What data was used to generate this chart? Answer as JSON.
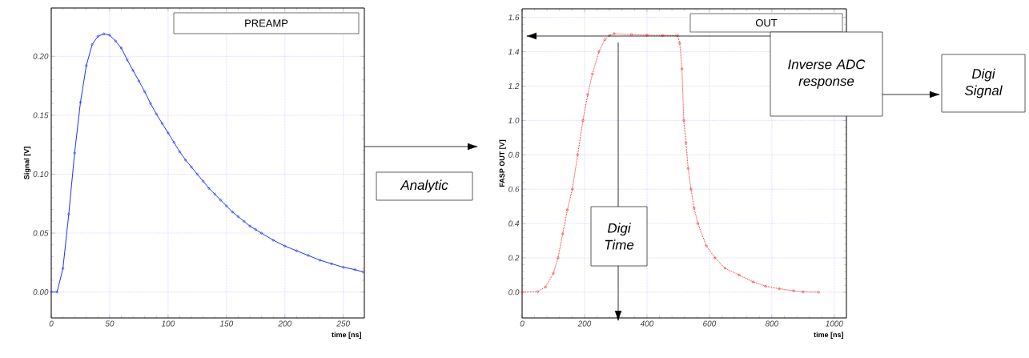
{
  "chart_data": [
    {
      "type": "line",
      "title": "PREAMP",
      "xlabel": "time [ns]",
      "ylabel": "Signal [V]",
      "series": [
        {
          "color": "#1f2fff",
          "x": [
            0,
            5,
            10,
            15,
            20,
            25,
            30,
            35,
            40,
            45,
            50,
            55,
            60,
            65,
            70,
            75,
            80,
            85,
            90,
            95,
            100,
            105,
            110,
            115,
            120,
            125,
            130,
            135,
            140,
            145,
            150,
            155,
            160,
            165,
            170,
            175,
            180,
            190,
            200,
            210,
            220,
            230,
            240,
            250,
            260,
            267
          ],
          "values": [
            0,
            0,
            0.02,
            0.066,
            0.118,
            0.161,
            0.192,
            0.21,
            0.217,
            0.219,
            0.218,
            0.213,
            0.207,
            0.197,
            0.188,
            0.179,
            0.17,
            0.16,
            0.151,
            0.143,
            0.135,
            0.127,
            0.119,
            0.112,
            0.106,
            0.1,
            0.094,
            0.088,
            0.083,
            0.078,
            0.073,
            0.068,
            0.064,
            0.06,
            0.056,
            0.053,
            0.05,
            0.044,
            0.039,
            0.035,
            0.031,
            0.027,
            0.024,
            0.021,
            0.019,
            0.017
          ]
        }
      ],
      "xlim": [
        0,
        268
      ],
      "ylim": [
        -0.022,
        0.241
      ],
      "xticks": [
        0,
        50,
        100,
        150,
        200,
        250
      ],
      "yticks": [
        {
          "value": 0,
          "label": "0.00"
        },
        {
          "value": 0.05,
          "label": "0.05"
        },
        {
          "value": 0.1,
          "label": "0.10"
        },
        {
          "value": 0.15,
          "label": "0.15"
        },
        {
          "value": 0.2,
          "label": "0.20"
        }
      ],
      "grid": true,
      "marker": "circle",
      "line_style": "solid",
      "annotations": [
        "Analytic"
      ]
    },
    {
      "type": "line",
      "title": "OUT",
      "xlabel": "time [ns]",
      "ylabel": "FASP OUT [V]",
      "series": [
        {
          "color": "#ff1a1a",
          "x": [
            0,
            50,
            75,
            100,
            115,
            130,
            145,
            161,
            178,
            195,
            210,
            225,
            246,
            265,
            280,
            295,
            350,
            400,
            450,
            498,
            505,
            512,
            518,
            525,
            532,
            541,
            551,
            563,
            590,
            618,
            650,
            695,
            740,
            780,
            824,
            870,
            900,
            950
          ],
          "values": [
            0,
            0.003,
            0.03,
            0.11,
            0.2,
            0.34,
            0.48,
            0.6,
            0.8,
            1.0,
            1.15,
            1.27,
            1.4,
            1.47,
            1.495,
            1.505,
            1.5,
            1.497,
            1.495,
            1.495,
            1.45,
            1.3,
            1.0,
            0.87,
            0.72,
            0.6,
            0.49,
            0.4,
            0.27,
            0.2,
            0.14,
            0.1,
            0.06,
            0.035,
            0.02,
            0.008,
            0.002,
            0
          ]
        }
      ],
      "xlim": [
        0,
        1039
      ],
      "ylim": [
        -0.15,
        1.65
      ],
      "xticks": [
        0,
        200,
        400,
        600,
        800,
        1000
      ],
      "yticks": [
        {
          "value": 0,
          "label": "0.0"
        },
        {
          "value": 0.2,
          "label": "0.2"
        },
        {
          "value": 0.4,
          "label": "0.4"
        },
        {
          "value": 0.6,
          "label": "0.6"
        },
        {
          "value": 0.8,
          "label": "0.8"
        },
        {
          "value": 1.0,
          "label": "1.0"
        },
        {
          "value": 1.2,
          "label": "1.2"
        },
        {
          "value": 1.4,
          "label": "1.4"
        },
        {
          "value": 1.6,
          "label": "1.6"
        }
      ],
      "grid": true,
      "marker": "circle",
      "line_style": "dotted",
      "annotations": [
        "Inverse ADC response",
        "Digi Signal",
        "Digi Time"
      ]
    }
  ]
}
